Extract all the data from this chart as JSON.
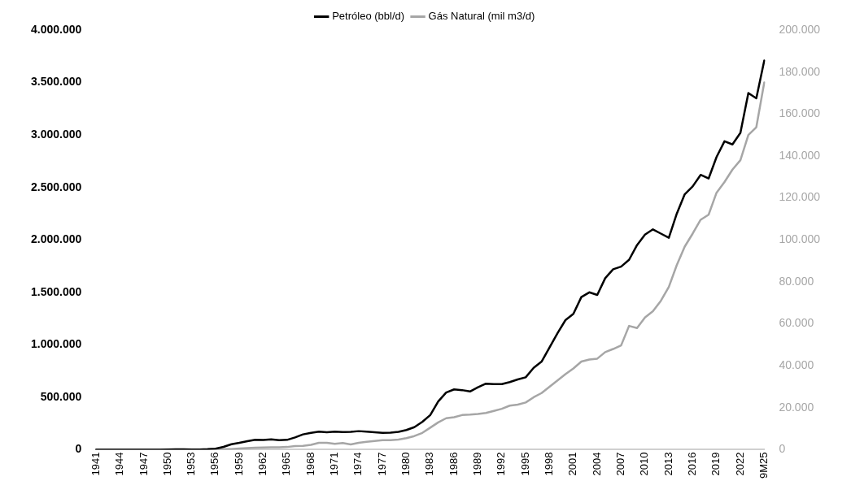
{
  "chart_data": {
    "type": "line",
    "categories": [
      "1941",
      null,
      null,
      "1944",
      null,
      null,
      "1947",
      null,
      null,
      "1950",
      null,
      null,
      "1953",
      null,
      null,
      "1956",
      null,
      null,
      "1959",
      null,
      null,
      "1962",
      null,
      null,
      "1965",
      null,
      null,
      "1968",
      null,
      null,
      "1971",
      null,
      null,
      "1974",
      null,
      null,
      "1977",
      null,
      null,
      "1980",
      null,
      null,
      "1983",
      null,
      null,
      "1986",
      null,
      null,
      "1989",
      null,
      null,
      "1992",
      null,
      null,
      "1995",
      null,
      null,
      "1998",
      null,
      null,
      "2001",
      null,
      null,
      "2004",
      null,
      null,
      "2007",
      null,
      null,
      "2010",
      null,
      null,
      "2013",
      null,
      null,
      "2016",
      null,
      null,
      "2019",
      null,
      null,
      "2022",
      null,
      null,
      "9M25"
    ],
    "series": [
      {
        "name": "Petróleo (bbl/d)",
        "color": "#000000",
        "values": [
          0,
          0,
          0,
          0,
          0,
          0,
          0,
          0,
          0,
          1000,
          3000,
          3000,
          2000,
          2000,
          5000,
          10000,
          27000,
          52000,
          65000,
          81000,
          95000,
          92000,
          98000,
          91000,
          94000,
          117000,
          146000,
          161000,
          173000,
          167000,
          172000,
          168000,
          170000,
          177000,
          172000,
          166000,
          160000,
          163000,
          170000,
          188000,
          215000,
          265000,
          330000,
          460000,
          545000,
          575000,
          568000,
          555000,
          595000,
          630000,
          625000,
          625000,
          645000,
          670000,
          690000,
          780000,
          840000,
          975000,
          1110000,
          1235000,
          1295000,
          1455000,
          1500000,
          1475000,
          1635000,
          1720000,
          1745000,
          1810000,
          1950000,
          2050000,
          2100000,
          2060000,
          2020000,
          2250000,
          2435000,
          2510000,
          2620000,
          2585000,
          2790000,
          2940000,
          2910000,
          3020000,
          3400000,
          3350000,
          3710000
        ]
      },
      {
        "name": "Gás Natural (mil m3/d)",
        "color": "#a6a6a6",
        "axis": "y2",
        "values": [
          0,
          0,
          0,
          0,
          0,
          0,
          0,
          0,
          0,
          0,
          0,
          0,
          0,
          0,
          0,
          200,
          300,
          300,
          600,
          800,
          1000,
          1100,
          1200,
          1200,
          1300,
          1700,
          1800,
          2300,
          3300,
          3300,
          2800,
          3200,
          2500,
          3300,
          3800,
          4200,
          4500,
          4500,
          4800,
          5500,
          6500,
          8000,
          10500,
          13000,
          15000,
          15500,
          16500,
          16700,
          17000,
          17500,
          18500,
          19500,
          21000,
          21500,
          22500,
          25000,
          27000,
          30000,
          33000,
          36000,
          38700,
          42000,
          43000,
          43400,
          46500,
          48000,
          49700,
          59000,
          58000,
          63000,
          66000,
          71000,
          77600,
          88000,
          96800,
          103000,
          109600,
          112000,
          122500,
          127600,
          133500,
          138000,
          150000,
          153700,
          175000
        ]
      }
    ],
    "ylim": [
      0,
      4000000
    ],
    "yticks": [
      {
        "value": 0,
        "label": "0"
      },
      {
        "value": 500000,
        "label": "500.000"
      },
      {
        "value": 1000000,
        "label": "1.000.000"
      },
      {
        "value": 1500000,
        "label": "1.500.000"
      },
      {
        "value": 2000000,
        "label": "2.000.000"
      },
      {
        "value": 2500000,
        "label": "2.500.000"
      },
      {
        "value": 3000000,
        "label": "3.000.000"
      },
      {
        "value": 3500000,
        "label": "3.500.000"
      },
      {
        "value": 4000000,
        "label": "4.000.000"
      }
    ],
    "y2lim": [
      0,
      200000
    ],
    "y2ticks": [
      {
        "value": 0,
        "label": "0"
      },
      {
        "value": 20000,
        "label": "20.000"
      },
      {
        "value": 40000,
        "label": "40.000"
      },
      {
        "value": 60000,
        "label": "60.000"
      },
      {
        "value": 80000,
        "label": "80.000"
      },
      {
        "value": 100000,
        "label": "100.000"
      },
      {
        "value": 120000,
        "label": "120.000"
      },
      {
        "value": 140000,
        "label": "140.000"
      },
      {
        "value": 160000,
        "label": "160.000"
      },
      {
        "value": 180000,
        "label": "180.000"
      },
      {
        "value": 200000,
        "label": "200.000"
      }
    ],
    "grid": false,
    "legend": "top",
    "marker": "none",
    "line_style": "solid"
  }
}
